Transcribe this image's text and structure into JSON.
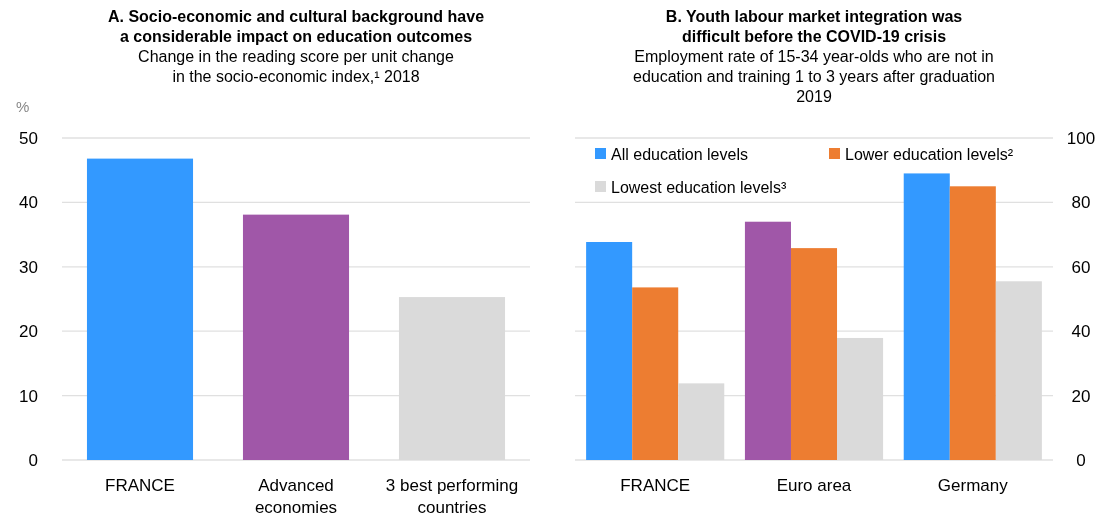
{
  "chart_data": [
    {
      "type": "bar",
      "title": "A. Socio-economic and cultural background have\na considerable impact on education outcomes",
      "subtitle": "Change in the reading score per unit change\nin the socio-economic index,¹ 2018",
      "ylabel": "%",
      "categories": [
        "FRANCE",
        "Advanced\neconomies",
        "3 best performing\ncountries"
      ],
      "values": [
        46.8,
        38.1,
        25.3
      ],
      "colors": [
        "#3399ff",
        "#a057a8",
        "#dadada"
      ],
      "ylim": [
        0,
        50
      ],
      "yticks": [
        0,
        10,
        20,
        30,
        40,
        50
      ],
      "grid": "y"
    },
    {
      "type": "bar",
      "title": "B. Youth labour market integration was\ndifficult before the COVID-19 crisis",
      "subtitle": "Employment rate of 15-34 year-olds who are not in\neducation and training 1 to 3 years after graduation\n2019",
      "categories": [
        "FRANCE",
        "Euro area",
        "Germany"
      ],
      "series": [
        {
          "name": "All education levels",
          "color": "#3399ff",
          "colors": [
            "#3399ff",
            "#a057a8",
            "#3399ff"
          ],
          "values": [
            67.7,
            74.0,
            89.0
          ],
          "axis": "y2"
        },
        {
          "name": "Lower education levels²",
          "color": "#ed7d31",
          "values": [
            53.6,
            65.8,
            85.0
          ],
          "axis": "y2"
        },
        {
          "name": "Lowest education levels³",
          "color": "#dadada",
          "values": [
            23.8,
            37.9,
            55.5
          ],
          "axis": "y2"
        }
      ],
      "y2lim": [
        0,
        100
      ],
      "y2ticks": [
        0,
        20,
        40,
        60,
        80,
        100
      ],
      "grid": "y2",
      "legend": "top"
    }
  ]
}
